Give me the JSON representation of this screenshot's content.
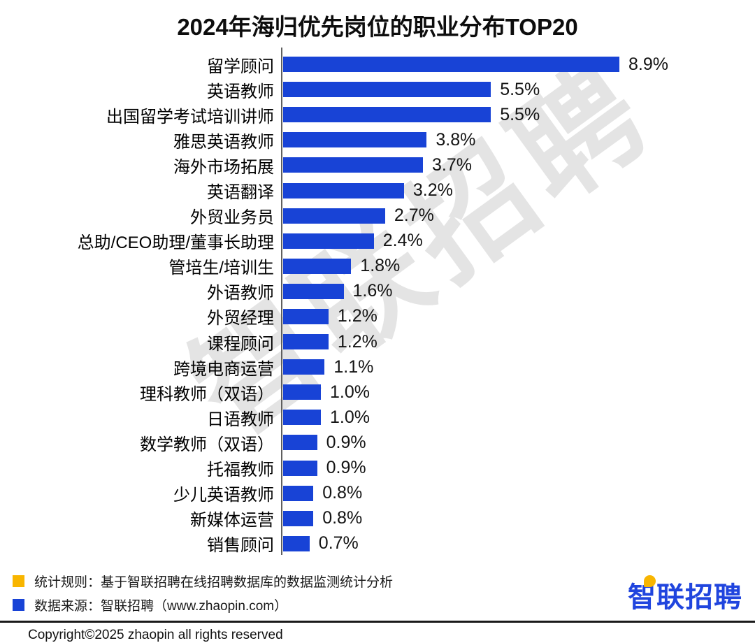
{
  "title": "2024年海归优先岗位的职业分布TOP20",
  "watermark": "智联招聘",
  "chart_data": {
    "type": "bar",
    "orientation": "horizontal",
    "title": "2024年海归优先岗位的职业分布TOP20",
    "xlabel": "",
    "ylabel": "",
    "xlim": [
      0,
      9.3
    ],
    "grid": false,
    "legend_position": "none",
    "bar_color": "#1843d6",
    "categories": [
      "留学顾问",
      "英语教师",
      "出国留学考试培训讲师",
      "雅思英语教师",
      "海外市场拓展",
      "英语翻译",
      "外贸业务员",
      "总助/CEO助理/董事长助理",
      "管培生/培训生",
      "外语教师",
      "外贸经理",
      "课程顾问",
      "跨境电商运营",
      "理科教师（双语）",
      "日语教师",
      "数学教师（双语）",
      "托福教师",
      "少儿英语教师",
      "新媒体运营",
      "销售顾问"
    ],
    "values": [
      8.9,
      5.5,
      5.5,
      3.8,
      3.7,
      3.2,
      2.7,
      2.4,
      1.8,
      1.6,
      1.2,
      1.2,
      1.1,
      1.0,
      1.0,
      0.9,
      0.9,
      0.8,
      0.8,
      0.7
    ],
    "value_labels": [
      "8.9%",
      "5.5%",
      "5.5%",
      "3.8%",
      "3.7%",
      "3.2%",
      "2.7%",
      "2.4%",
      "1.8%",
      "1.6%",
      "1.2%",
      "1.2%",
      "1.1%",
      "1.0%",
      "1.0%",
      "0.9%",
      "0.9%",
      "0.8%",
      "0.8%",
      "0.7%"
    ]
  },
  "footnotes": [
    {
      "marker_color": "#f8b500",
      "text": "统计规则：基于智联招聘在线招聘数据库的数据监测统计分析"
    },
    {
      "marker_color": "#1843d6",
      "text": "数据来源：智联招聘（www.zhaopin.com）"
    }
  ],
  "logo_text": "智联招聘",
  "copyright": "Copyright©2025 zhaopin all rights reserved"
}
